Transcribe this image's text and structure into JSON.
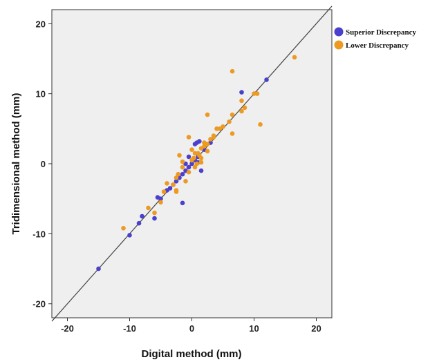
{
  "chart_data": {
    "type": "scatter",
    "title": "",
    "xlabel": "Digital method (mm)",
    "ylabel": "Tridimensional method (mm)",
    "xlim": [
      -22.5,
      22.5
    ],
    "ylim": [
      -22,
      22
    ],
    "xticks": [
      -20,
      -10,
      0,
      10,
      20
    ],
    "yticks": [
      20,
      10,
      0,
      -10,
      -20
    ],
    "grid": false,
    "background": "#efefef",
    "reference_line": {
      "type": "identity",
      "from": [
        -22.5,
        -22.5
      ],
      "to": [
        22.5,
        22.5
      ],
      "color": "#444444"
    },
    "legend": {
      "placement": "right-top"
    },
    "series": [
      {
        "name": "Superior Discrepancy",
        "color": "#4b40cc",
        "points": [
          [
            -15,
            -15
          ],
          [
            -10,
            -10.2
          ],
          [
            -8.5,
            -8.5
          ],
          [
            -8,
            -7.5
          ],
          [
            -6,
            -7.8
          ],
          [
            -5,
            -5
          ],
          [
            -5.5,
            -4.8
          ],
          [
            -4,
            -3.8
          ],
          [
            -3.5,
            -3.5
          ],
          [
            -3,
            -3
          ],
          [
            -2.5,
            -2.5
          ],
          [
            -2,
            -2
          ],
          [
            -1.5,
            -5.6
          ],
          [
            -1.5,
            -1.5
          ],
          [
            -1,
            -1
          ],
          [
            -0.5,
            -0.5
          ],
          [
            -1,
            0
          ],
          [
            0,
            0
          ],
          [
            0.5,
            0.5
          ],
          [
            1,
            1
          ],
          [
            0.8,
            3
          ],
          [
            1.2,
            3.2
          ],
          [
            0.5,
            2.8
          ],
          [
            1,
            0.2
          ],
          [
            -0.5,
            1
          ],
          [
            1.5,
            -1
          ],
          [
            2,
            2
          ],
          [
            3,
            3
          ],
          [
            8,
            10.2
          ],
          [
            12,
            12
          ]
        ]
      },
      {
        "name": "Lower Discrepancy",
        "color": "#ec9a22",
        "points": [
          [
            -11,
            -9.2
          ],
          [
            -7,
            -6.3
          ],
          [
            -6,
            -7
          ],
          [
            -4.5,
            -4
          ],
          [
            -5,
            -5.5
          ],
          [
            -4,
            -2.8
          ],
          [
            -3,
            -3
          ],
          [
            -2.5,
            -4
          ],
          [
            -2.5,
            -3.8
          ],
          [
            -2.5,
            -2
          ],
          [
            -2.2,
            -1.5
          ],
          [
            -2,
            1.2
          ],
          [
            -1.5,
            -0.5
          ],
          [
            -1.5,
            0.3
          ],
          [
            -1,
            -2.5
          ],
          [
            -0.5,
            -1.2
          ],
          [
            -0.5,
            3.8
          ],
          [
            0,
            2
          ],
          [
            0,
            0.5
          ],
          [
            0.3,
            0.8
          ],
          [
            0.5,
            1.5
          ],
          [
            0.5,
            -0.5
          ],
          [
            0.8,
            0
          ],
          [
            1,
            1.5
          ],
          [
            1.2,
            1.2
          ],
          [
            1.5,
            2.2
          ],
          [
            1.5,
            0.2
          ],
          [
            2,
            3
          ],
          [
            2,
            2.5
          ],
          [
            2.5,
            1.8
          ],
          [
            2.5,
            7
          ],
          [
            3,
            3.5
          ],
          [
            3.5,
            4
          ],
          [
            3.5,
            3.8
          ],
          [
            4,
            5
          ],
          [
            4.5,
            5
          ],
          [
            5,
            5.3
          ],
          [
            6,
            6
          ],
          [
            6.5,
            13.2
          ],
          [
            6.5,
            4.3
          ],
          [
            8,
            9
          ],
          [
            8.5,
            8
          ],
          [
            8,
            7.5
          ],
          [
            10,
            10
          ],
          [
            10.5,
            10
          ],
          [
            11,
            5.6
          ],
          [
            16.5,
            15.2
          ],
          [
            6.5,
            7
          ],
          [
            2.5,
            2.8
          ],
          [
            1.5,
            0.8
          ]
        ]
      }
    ]
  }
}
